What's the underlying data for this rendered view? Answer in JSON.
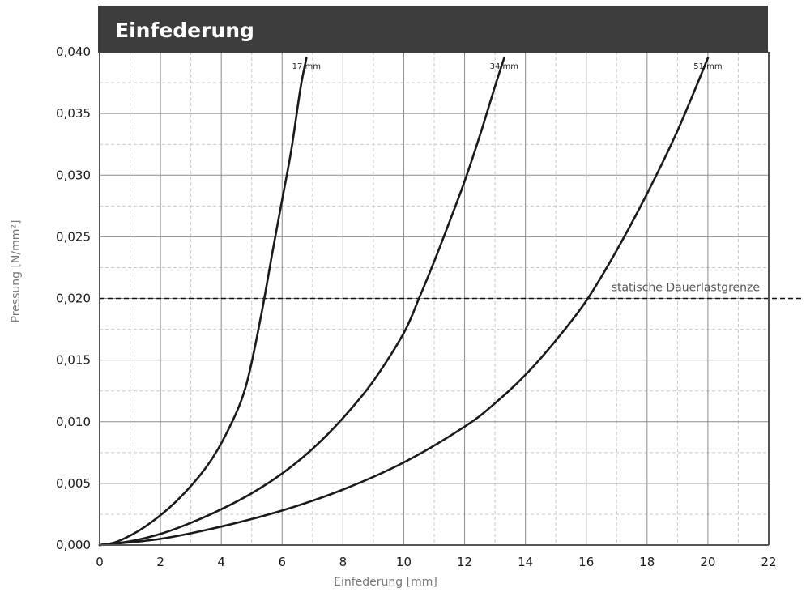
{
  "chart_data": {
    "type": "line",
    "title": "Einfederung",
    "xlabel": "Einfederung [mm]",
    "ylabel": "Pressung [N/mm²]",
    "xlim": [
      0,
      22
    ],
    "ylim": [
      0,
      0.04
    ],
    "x_ticks": [
      0,
      2,
      4,
      6,
      8,
      10,
      12,
      14,
      16,
      18,
      20,
      22
    ],
    "x_tick_labels": [
      "0",
      "2",
      "4",
      "6",
      "8",
      "10",
      "12",
      "14",
      "16",
      "18",
      "20",
      "22"
    ],
    "y_ticks": [
      0,
      0.005,
      0.01,
      0.015,
      0.02,
      0.025,
      0.03,
      0.035,
      0.04
    ],
    "y_tick_labels": [
      "0,000",
      "0,005",
      "0,010",
      "0,015",
      "0,020",
      "0,025",
      "0,030",
      "0,035",
      "0,040"
    ],
    "grid": true,
    "colors": {
      "title_bar": "#3d3d3d",
      "series": "#1a1a1a",
      "grid_major": "#8c8c8c",
      "grid_minor": "#c8c8c8"
    },
    "series": [
      {
        "name": "17 mm",
        "x": [
          0,
          0.6,
          1.5,
          2.5,
          3.5,
          4.2,
          4.8,
          5.3,
          5.7,
          6.0,
          6.3,
          6.6,
          6.8
        ],
        "y": [
          0,
          0.0003,
          0.0015,
          0.0035,
          0.0063,
          0.0092,
          0.0128,
          0.0185,
          0.024,
          0.028,
          0.032,
          0.037,
          0.0395
        ]
      },
      {
        "name": "34 mm",
        "x": [
          0,
          1,
          2,
          3,
          4,
          5,
          6,
          7,
          8,
          9,
          10,
          10.5,
          11,
          11.5,
          12,
          12.5,
          13,
          13.3
        ],
        "y": [
          0,
          0.0003,
          0.0009,
          0.0018,
          0.0029,
          0.0042,
          0.0058,
          0.0078,
          0.0103,
          0.0133,
          0.0172,
          0.02,
          0.023,
          0.0262,
          0.0295,
          0.0332,
          0.0372,
          0.0395
        ]
      },
      {
        "name": "51 mm",
        "x": [
          0,
          2,
          4,
          6,
          8,
          10,
          12,
          13,
          14,
          15,
          16,
          17,
          18,
          19,
          20
        ],
        "y": [
          0,
          0.0005,
          0.0015,
          0.0028,
          0.0045,
          0.0067,
          0.0096,
          0.0115,
          0.0138,
          0.0166,
          0.0198,
          0.0239,
          0.0285,
          0.0336,
          0.0395
        ]
      }
    ],
    "reference_lines": [
      {
        "y": 0.02,
        "label": "statische Dauerlastgrenze",
        "style": "dashed"
      }
    ]
  }
}
